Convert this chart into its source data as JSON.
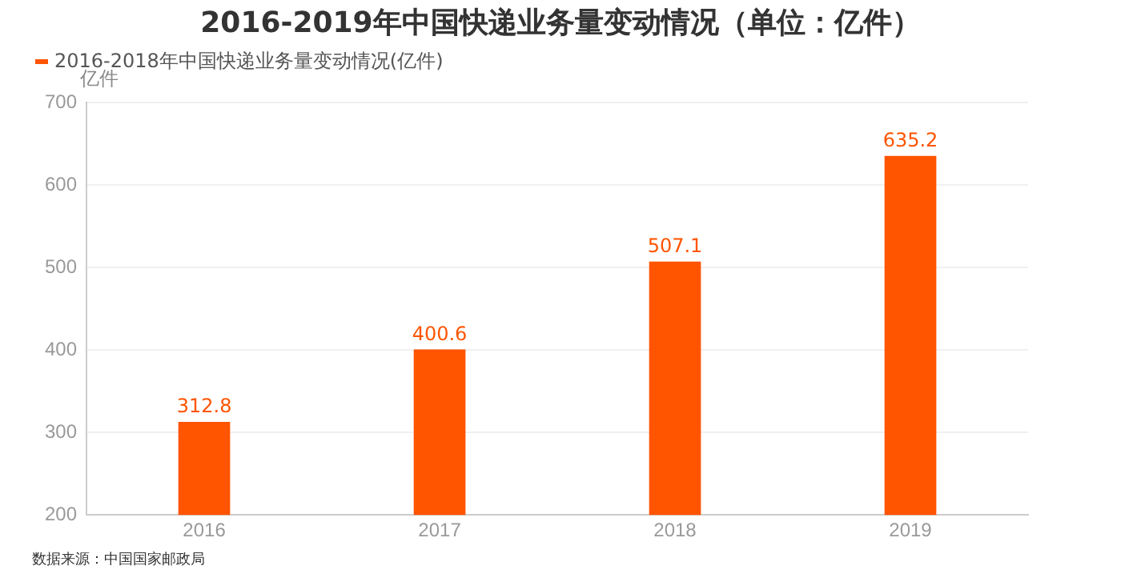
{
  "chart_data": {
    "type": "bar",
    "title": "2016-2019年中国快递业务量变动情况（单位：亿件）",
    "ylabel": "亿件",
    "categories": [
      "2016",
      "2017",
      "2018",
      "2019"
    ],
    "series": [
      {
        "name": "2016-2018年中国快递业务量变动情况(亿件)",
        "color": "#ff5400",
        "values": [
          312.8,
          400.6,
          507.1,
          635.2
        ]
      }
    ],
    "ylim": [
      200,
      700
    ],
    "yticks": [
      200,
      300,
      400,
      500,
      600,
      700
    ],
    "grid": "y",
    "legend": "top left",
    "data_labels": true,
    "annotations": [
      "数据来源：中国国家邮政局"
    ]
  }
}
